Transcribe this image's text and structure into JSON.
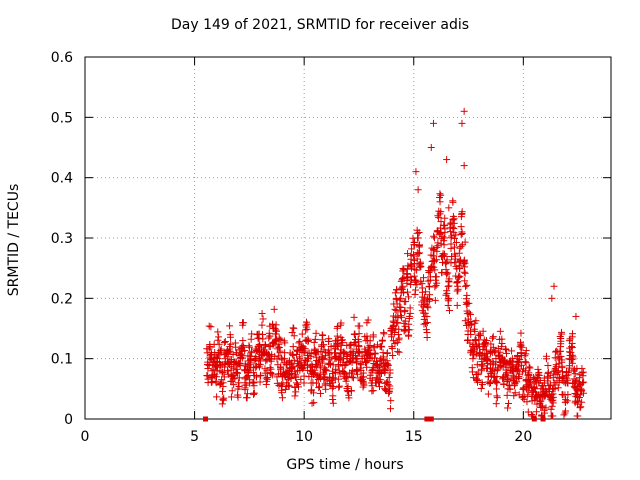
{
  "chart_data": {
    "type": "scatter",
    "title": "Day 149 of 2021, SRMTID for receiver adis",
    "xlabel": "GPS time / hours",
    "ylabel": "SRMTID / TECUs",
    "xlim": [
      0,
      24
    ],
    "ylim": [
      0,
      0.6
    ],
    "xticks": [
      "0",
      "5",
      "10",
      "15",
      "20"
    ],
    "yticks": [
      "0",
      "0.1",
      "0.2",
      "0.3",
      "0.4",
      "0.5",
      "0.6"
    ],
    "grid": true,
    "marker": "+",
    "series_color": "#dd0000",
    "series": [
      {
        "name": "SRMTID",
        "x": [
          5.6,
          5.7,
          5.8,
          5.9,
          6.0,
          6.1,
          6.2,
          6.3,
          6.4,
          6.5,
          6.6,
          6.7,
          6.8,
          6.9,
          7.0,
          7.1,
          7.2,
          7.3,
          7.4,
          7.5,
          7.6,
          7.7,
          7.8,
          7.9,
          8.0,
          8.1,
          8.2,
          8.3,
          8.4,
          8.5,
          8.6,
          8.7,
          8.8,
          8.9,
          9.0,
          9.1,
          9.2,
          9.3,
          9.4,
          9.5,
          9.6,
          9.7,
          9.8,
          9.9,
          10.0,
          10.1,
          10.2,
          10.3,
          10.4,
          10.5,
          10.6,
          10.7,
          10.8,
          10.9,
          11.0,
          11.1,
          11.2,
          11.3,
          11.4,
          11.5,
          11.6,
          11.7,
          11.8,
          11.9,
          12.0,
          12.1,
          12.2,
          12.3,
          12.4,
          12.5,
          12.6,
          12.7,
          12.8,
          12.9,
          13.0,
          13.1,
          13.2,
          13.3,
          13.4,
          13.5,
          13.6,
          13.7,
          13.8,
          13.9,
          14.0,
          14.1,
          14.2,
          14.3,
          14.4,
          14.5,
          14.6,
          14.7,
          14.8,
          14.9,
          15.0,
          15.1,
          15.2,
          15.3,
          15.4,
          15.5,
          15.6,
          15.7,
          15.8,
          15.9,
          16.0,
          16.1,
          16.2,
          16.3,
          16.4,
          16.5,
          16.6,
          16.7,
          16.8,
          16.9,
          17.0,
          17.1,
          17.2,
          17.3,
          17.4,
          17.5,
          17.6,
          17.7,
          17.8,
          17.9,
          18.0,
          18.1,
          18.2,
          18.3,
          18.4,
          18.5,
          18.6,
          18.7,
          18.8,
          18.9,
          19.0,
          19.1,
          19.2,
          19.3,
          19.4,
          19.5,
          19.6,
          19.7,
          19.8,
          19.9,
          20.0,
          20.1,
          20.2,
          20.3,
          20.4,
          20.5,
          20.6,
          20.7,
          20.8,
          20.9,
          21.0,
          21.1,
          21.2,
          21.3,
          21.4,
          21.5,
          21.6,
          21.7,
          21.8,
          21.9,
          22.0,
          22.1,
          22.2,
          22.3,
          22.4,
          22.5,
          22.6,
          22.7
        ],
        "y": [
          0.09,
          0.12,
          0.08,
          0.1,
          0.07,
          0.11,
          0.09,
          0.06,
          0.1,
          0.08,
          0.12,
          0.07,
          0.09,
          0.11,
          0.06,
          0.1,
          0.13,
          0.08,
          0.07,
          0.09,
          0.11,
          0.06,
          0.1,
          0.12,
          0.09,
          0.14,
          0.11,
          0.08,
          0.12,
          0.1,
          0.15,
          0.13,
          0.09,
          0.11,
          0.07,
          0.1,
          0.06,
          0.08,
          0.09,
          0.12,
          0.07,
          0.08,
          0.1,
          0.11,
          0.09,
          0.13,
          0.1,
          0.08,
          0.06,
          0.11,
          0.09,
          0.07,
          0.12,
          0.1,
          0.08,
          0.11,
          0.09,
          0.06,
          0.1,
          0.12,
          0.08,
          0.13,
          0.1,
          0.09,
          0.07,
          0.11,
          0.08,
          0.14,
          0.1,
          0.12,
          0.09,
          0.07,
          0.11,
          0.13,
          0.1,
          0.08,
          0.12,
          0.09,
          0.06,
          0.1,
          0.11,
          0.08,
          0.09,
          0.05,
          0.12,
          0.16,
          0.18,
          0.14,
          0.2,
          0.22,
          0.18,
          0.24,
          0.17,
          0.25,
          0.27,
          0.23,
          0.3,
          0.26,
          0.21,
          0.19,
          0.17,
          0.22,
          0.25,
          0.28,
          0.23,
          0.31,
          0.34,
          0.27,
          0.3,
          0.24,
          0.2,
          0.29,
          0.33,
          0.27,
          0.22,
          0.25,
          0.31,
          0.26,
          0.19,
          0.16,
          0.14,
          0.1,
          0.13,
          0.09,
          0.11,
          0.08,
          0.12,
          0.1,
          0.07,
          0.09,
          0.11,
          0.08,
          0.06,
          0.1,
          0.12,
          0.07,
          0.09,
          0.05,
          0.08,
          0.1,
          0.06,
          0.09,
          0.07,
          0.11,
          0.05,
          0.08,
          0.04,
          0.06,
          0.03,
          0.05,
          0.04,
          0.06,
          0.03,
          0.05,
          0.04,
          0.07,
          0.05,
          0.03,
          0.06,
          0.09,
          0.08,
          0.12,
          0.07,
          0.04,
          0.06,
          0.1,
          0.12,
          0.08,
          0.05,
          0.03,
          0.04,
          0.06
        ],
        "extremes": [
          [
            15.1,
            0.41
          ],
          [
            15.2,
            0.38
          ],
          [
            15.9,
            0.49
          ],
          [
            15.8,
            0.45
          ],
          [
            16.5,
            0.43
          ],
          [
            17.3,
            0.51
          ],
          [
            17.2,
            0.49
          ],
          [
            17.3,
            0.42
          ],
          [
            16.2,
            0.36
          ],
          [
            16.6,
            0.35
          ],
          [
            21.4,
            0.22
          ],
          [
            21.3,
            0.2
          ],
          [
            22.4,
            0.17
          ]
        ],
        "zero_markers": [
          5.5,
          15.6,
          15.8,
          20.5,
          20.9
        ]
      }
    ]
  }
}
